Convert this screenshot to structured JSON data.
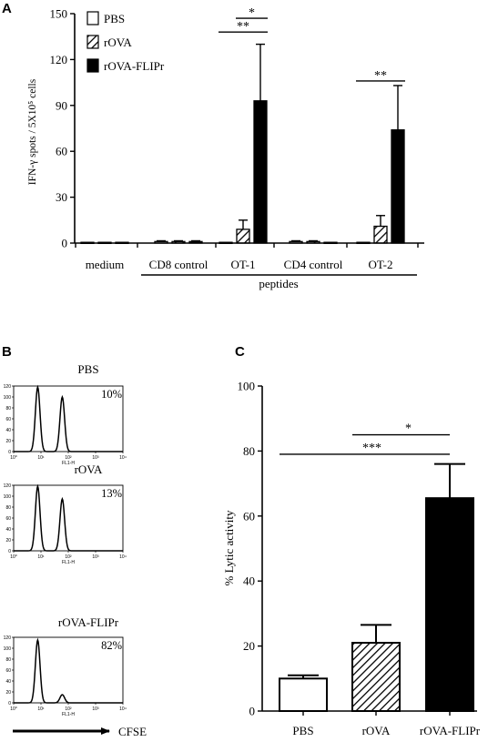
{
  "panels": {
    "a": "A",
    "b": "B",
    "c": "C"
  },
  "chart_data": [
    {
      "id": "A",
      "type": "bar",
      "ylabel": "IFN-γ spots / 5X10⁵ cells",
      "ylim": [
        0,
        150
      ],
      "yticks": [
        "0",
        "30",
        "60",
        "90",
        "120",
        "150"
      ],
      "categories": [
        "medium",
        "CD8 control",
        "OT-1",
        "CD4 control",
        "OT-2"
      ],
      "group_label": "peptides",
      "legend_position": "top-left",
      "series": [
        {
          "name": "PBS",
          "values": [
            0.5,
            1,
            0.5,
            1,
            0.5
          ],
          "errors": [
            0,
            0.5,
            0,
            0.5,
            0
          ],
          "fill": "white"
        },
        {
          "name": "rOVA",
          "values": [
            0.5,
            1,
            9,
            1,
            11
          ],
          "errors": [
            0,
            0.5,
            6,
            0.5,
            7
          ],
          "fill": "hatch"
        },
        {
          "name": "rOVA-FLIPr",
          "values": [
            0.5,
            1,
            93,
            0.5,
            74
          ],
          "errors": [
            0,
            0.5,
            37,
            0,
            29
          ],
          "fill": "black"
        }
      ],
      "significance": [
        {
          "category": "OT-1",
          "from": "PBS",
          "to": "rOVA-FLIPr",
          "label": "**",
          "y": 138
        },
        {
          "category": "OT-1",
          "from": "rOVA",
          "to": "rOVA-FLIPr",
          "label": "*",
          "y": 147
        },
        {
          "category": "OT-2",
          "from": "PBS",
          "to": "rOVA-FLIPr",
          "label": "**",
          "y": 106
        }
      ]
    },
    {
      "id": "B",
      "type": "histogram",
      "xlabel": "CFSE",
      "axis_name": "FL1-H",
      "yticks": [
        "0",
        "20",
        "40",
        "60",
        "80",
        "100",
        "120"
      ],
      "xticks": [
        "10⁰",
        "10¹",
        "10²",
        "10³",
        "10⁴"
      ],
      "ymax": 120,
      "plots": [
        {
          "label": "PBS",
          "percent": "10%",
          "peaks": [
            {
              "log": 0.88,
              "height": 118
            },
            {
              "log": 1.78,
              "height": 100
            }
          ]
        },
        {
          "label": "rOVA",
          "percent": "13%",
          "peaks": [
            {
              "log": 0.88,
              "height": 118
            },
            {
              "log": 1.78,
              "height": 95
            }
          ]
        },
        {
          "label": "rOVA-FLIPr",
          "percent": "82%",
          "peaks": [
            {
              "log": 0.88,
              "height": 115
            },
            {
              "log": 1.78,
              "height": 15
            }
          ]
        }
      ]
    },
    {
      "id": "C",
      "type": "bar",
      "ylabel": "% Lytic activity",
      "ylim": [
        0,
        100
      ],
      "yticks": [
        "0",
        "20",
        "40",
        "60",
        "80",
        "100"
      ],
      "categories": [
        "PBS",
        "rOVA",
        "rOVA-FLIPr"
      ],
      "values": [
        10,
        21,
        65.5
      ],
      "errors": [
        1,
        5.5,
        10.5
      ],
      "fills": [
        "white",
        "hatch",
        "black"
      ],
      "significance": [
        {
          "from": "rOVA",
          "to": "rOVA-FLIPr",
          "label": "*",
          "y": 85
        },
        {
          "from": "PBS",
          "to": "rOVA-FLIPr",
          "label": "***",
          "y": 79
        }
      ]
    }
  ]
}
